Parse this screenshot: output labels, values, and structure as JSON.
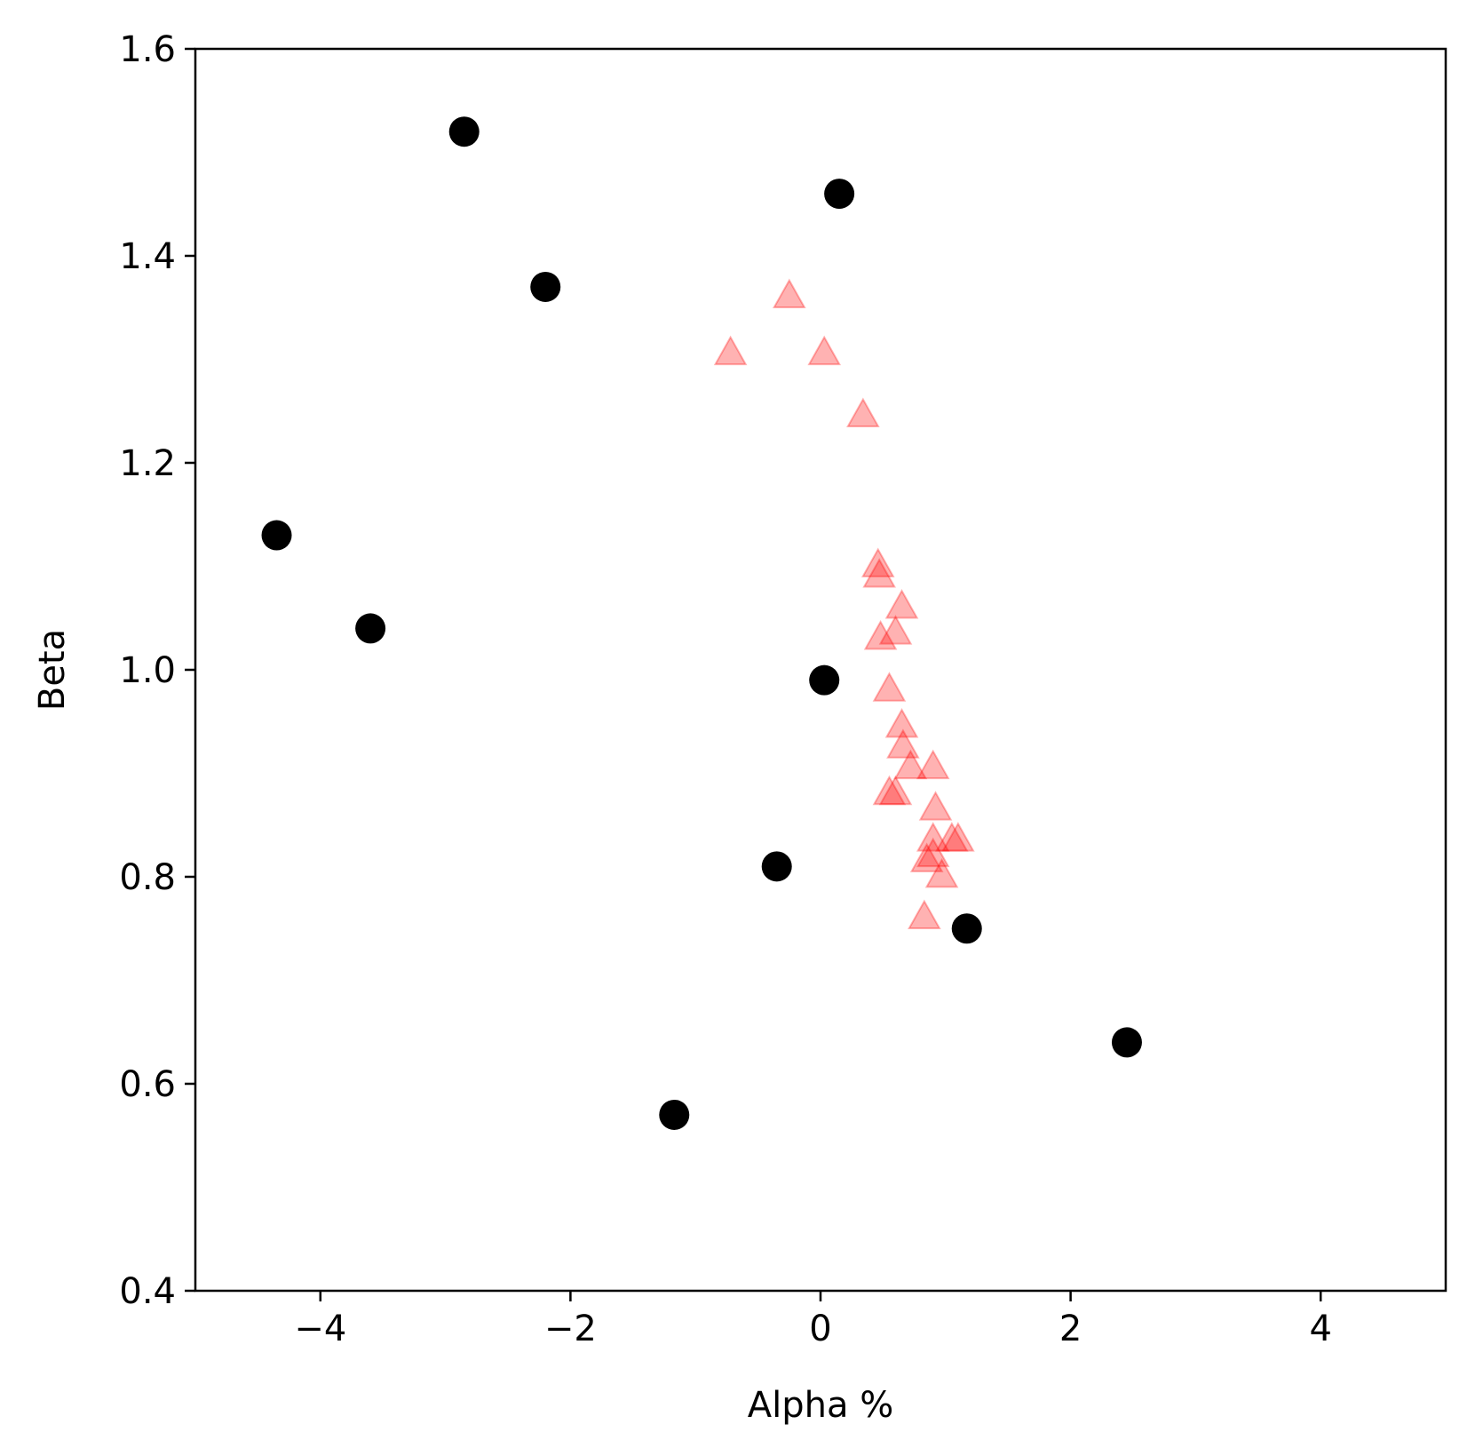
{
  "chart_data": {
    "type": "scatter",
    "xlabel": "Alpha %",
    "ylabel": "Beta",
    "xlim": [
      -5,
      5
    ],
    "ylim": [
      0.4,
      1.6
    ],
    "xticks": [
      -4,
      -2,
      0,
      2,
      4
    ],
    "xtick_labels": [
      "−4",
      "−2",
      "0",
      "2",
      "4"
    ],
    "yticks": [
      0.4,
      0.6,
      0.8,
      1.0,
      1.2,
      1.4,
      1.6
    ],
    "ytick_labels": [
      "0.4",
      "0.6",
      "0.8",
      "1.0",
      "1.2",
      "1.4",
      "1.6"
    ],
    "grid": false,
    "series": [
      {
        "marker": "circle",
        "color": "#000000",
        "points": [
          [
            -2.85,
            1.52
          ],
          [
            0.15,
            1.46
          ],
          [
            -2.2,
            1.37
          ],
          [
            -4.35,
            1.13
          ],
          [
            -3.6,
            1.04
          ],
          [
            0.03,
            0.99
          ],
          [
            -0.35,
            0.81
          ],
          [
            1.17,
            0.75
          ],
          [
            2.45,
            0.64
          ],
          [
            -1.17,
            0.57
          ]
        ]
      },
      {
        "marker": "triangle",
        "color": "#ff0000",
        "alpha": 0.3,
        "points": [
          [
            -0.25,
            1.36
          ],
          [
            -0.72,
            1.305
          ],
          [
            0.03,
            1.305
          ],
          [
            0.34,
            1.245
          ],
          [
            0.46,
            1.1
          ],
          [
            0.47,
            1.09
          ],
          [
            0.65,
            1.06
          ],
          [
            0.48,
            1.03
          ],
          [
            0.6,
            1.035
          ],
          [
            0.55,
            0.98
          ],
          [
            0.65,
            0.945
          ],
          [
            0.66,
            0.925
          ],
          [
            0.72,
            0.905
          ],
          [
            0.9,
            0.905
          ],
          [
            0.55,
            0.88
          ],
          [
            0.6,
            0.88
          ],
          [
            0.92,
            0.865
          ],
          [
            0.9,
            0.835
          ],
          [
            1.05,
            0.835
          ],
          [
            1.1,
            0.835
          ],
          [
            0.85,
            0.815
          ],
          [
            0.9,
            0.82
          ],
          [
            0.97,
            0.8
          ],
          [
            0.83,
            0.76
          ]
        ]
      }
    ]
  }
}
